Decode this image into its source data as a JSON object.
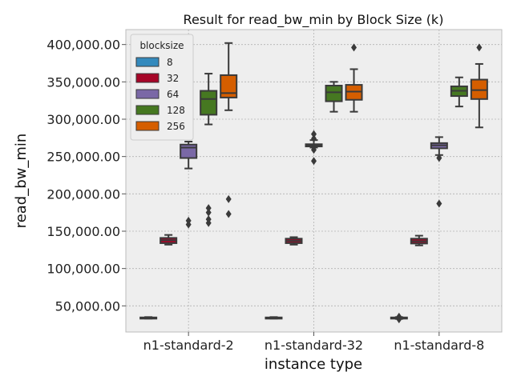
{
  "chart_data": {
    "type": "box",
    "title": "Result for read_bw_min by Block Size (k)",
    "xlabel": "instance type",
    "ylabel": "read_bw_min",
    "categories": [
      "n1-standard-2",
      "n1-standard-32",
      "n1-standard-8"
    ],
    "ylim": [
      15000,
      420000
    ],
    "yticks": [
      50000,
      100000,
      150000,
      200000,
      250000,
      300000,
      350000,
      400000
    ],
    "ytick_labels": [
      "50,000.00",
      "100,000.00",
      "150,000.00",
      "200,000.00",
      "250,000.00",
      "300,000.00",
      "350,000.00",
      "400,000.00"
    ],
    "grid": true,
    "legend": {
      "title": "blocksize",
      "position": "top-left"
    },
    "series": [
      {
        "name": "8",
        "color": "#348abd",
        "boxes": [
          {
            "min": 33000,
            "q1": 33500,
            "median": 34000,
            "q3": 34500,
            "max": 35000,
            "outliers": []
          },
          {
            "min": 33000,
            "q1": 33500,
            "median": 34000,
            "q3": 34500,
            "max": 35000,
            "outliers": []
          },
          {
            "min": 32500,
            "q1": 33500,
            "median": 34000,
            "q3": 34500,
            "max": 35000,
            "outliers": [
              32000,
              35500
            ]
          }
        ]
      },
      {
        "name": "32",
        "color": "#a60628",
        "boxes": [
          {
            "min": 132000,
            "q1": 134000,
            "median": 138000,
            "q3": 141000,
            "max": 145000,
            "outliers": []
          },
          {
            "min": 132000,
            "q1": 134000,
            "median": 137000,
            "q3": 140000,
            "max": 142000,
            "outliers": []
          },
          {
            "min": 131000,
            "q1": 133500,
            "median": 136500,
            "q3": 140000,
            "max": 144000,
            "outliers": []
          }
        ]
      },
      {
        "name": "64",
        "color": "#7a68a6",
        "boxes": [
          {
            "min": 234000,
            "q1": 248000,
            "median": 262000,
            "q3": 266000,
            "max": 270000,
            "outliers": [
              159000,
              164000
            ]
          },
          {
            "min": 262000,
            "q1": 263500,
            "median": 265000,
            "q3": 266500,
            "max": 272000,
            "outliers": [
              244000,
              259000,
              280000,
              274000
            ]
          },
          {
            "min": 252000,
            "q1": 261000,
            "median": 265000,
            "q3": 268000,
            "max": 276000,
            "outliers": [
              248000,
              187000
            ]
          }
        ]
      },
      {
        "name": "128",
        "color": "#467821",
        "boxes": [
          {
            "min": 293000,
            "q1": 306000,
            "median": 327000,
            "q3": 338000,
            "max": 361000,
            "outliers": [
              161000,
              166000,
              175000,
              181000
            ]
          },
          {
            "min": 310000,
            "q1": 324000,
            "median": 336000,
            "q3": 345000,
            "max": 350000,
            "outliers": []
          },
          {
            "min": 317000,
            "q1": 331000,
            "median": 338000,
            "q3": 344000,
            "max": 356000,
            "outliers": []
          }
        ]
      },
      {
        "name": "256",
        "color": "#d55e00",
        "boxes": [
          {
            "min": 312000,
            "q1": 329000,
            "median": 335000,
            "q3": 359000,
            "max": 402000,
            "outliers": [
              193000,
              173000
            ]
          },
          {
            "min": 310000,
            "q1": 326000,
            "median": 337000,
            "q3": 346000,
            "max": 367000,
            "outliers": [
              396000
            ]
          },
          {
            "min": 289000,
            "q1": 327000,
            "median": 339000,
            "q3": 353000,
            "max": 374000,
            "outliers": [
              396000
            ]
          }
        ]
      }
    ]
  }
}
